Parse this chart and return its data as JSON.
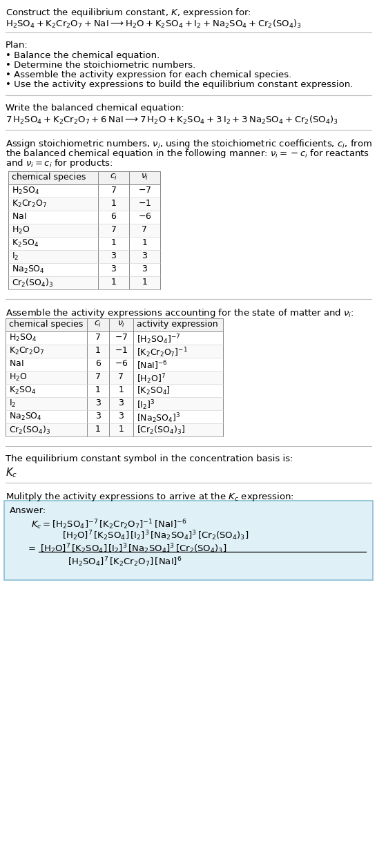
{
  "bg_color": "#ffffff",
  "answer_box_color": "#dff0f7",
  "answer_box_border": "#89bdd3",
  "text_color": "#000000",
  "title_line1": "Construct the equilibrium constant, $K$, expression for:",
  "title_line2": "$\\mathrm{H_2SO_4 + K_2Cr_2O_7 + NaI \\longrightarrow H_2O + K_2SO_4 + I_2 + Na_2SO_4 + Cr_2(SO_4)_3}$",
  "plan_header": "Plan:",
  "plan_items": [
    "• Balance the chemical equation.",
    "• Determine the stoichiometric numbers.",
    "• Assemble the activity expression for each chemical species.",
    "• Use the activity expressions to build the equilibrium constant expression."
  ],
  "balanced_header": "Write the balanced chemical equation:",
  "balanced_eq": "$\\mathrm{7\\,H_2SO_4 + K_2Cr_2O_7 + 6\\,NaI \\longrightarrow 7\\,H_2O + K_2SO_4 + 3\\,I_2 + 3\\,Na_2SO_4 + Cr_2(SO_4)_3}$",
  "stoich_lines": [
    "Assign stoichiometric numbers, $\\nu_i$, using the stoichiometric coefficients, $c_i$, from",
    "the balanced chemical equation in the following manner: $\\nu_i = -c_i$ for reactants",
    "and $\\nu_i = c_i$ for products:"
  ],
  "table1_headers": [
    "chemical species",
    "$c_i$",
    "$\\nu_i$"
  ],
  "table1_rows": [
    [
      "$\\mathrm{H_2SO_4}$",
      "7",
      "$-7$"
    ],
    [
      "$\\mathrm{K_2Cr_2O_7}$",
      "1",
      "$-1$"
    ],
    [
      "$\\mathrm{NaI}$",
      "6",
      "$-6$"
    ],
    [
      "$\\mathrm{H_2O}$",
      "7",
      "7"
    ],
    [
      "$\\mathrm{K_2SO_4}$",
      "1",
      "1"
    ],
    [
      "$\\mathrm{I_2}$",
      "3",
      "3"
    ],
    [
      "$\\mathrm{Na_2SO_4}$",
      "3",
      "3"
    ],
    [
      "$\\mathrm{Cr_2(SO_4)_3}$",
      "1",
      "1"
    ]
  ],
  "activity_header": "Assemble the activity expressions accounting for the state of matter and $\\nu_i$:",
  "table2_headers": [
    "chemical species",
    "$c_i$",
    "$\\nu_i$",
    "activity expression"
  ],
  "table2_rows": [
    [
      "$\\mathrm{H_2SO_4}$",
      "7",
      "$-7$",
      "$[\\mathrm{H_2SO_4}]^{-7}$"
    ],
    [
      "$\\mathrm{K_2Cr_2O_7}$",
      "1",
      "$-1$",
      "$[\\mathrm{K_2Cr_2O_7}]^{-1}$"
    ],
    [
      "$\\mathrm{NaI}$",
      "6",
      "$-6$",
      "$[\\mathrm{NaI}]^{-6}$"
    ],
    [
      "$\\mathrm{H_2O}$",
      "7",
      "7",
      "$[\\mathrm{H_2O}]^{7}$"
    ],
    [
      "$\\mathrm{K_2SO_4}$",
      "1",
      "1",
      "$[\\mathrm{K_2SO_4}]$"
    ],
    [
      "$\\mathrm{I_2}$",
      "3",
      "3",
      "$[\\mathrm{I_2}]^{3}$"
    ],
    [
      "$\\mathrm{Na_2SO_4}$",
      "3",
      "3",
      "$[\\mathrm{Na_2SO_4}]^{3}$"
    ],
    [
      "$\\mathrm{Cr_2(SO_4)_3}$",
      "1",
      "1",
      "$[\\mathrm{Cr_2(SO_4)_3}]$"
    ]
  ],
  "kc_header": "The equilibrium constant symbol in the concentration basis is:",
  "kc_symbol": "$K_c$",
  "multiply_header": "Mulitply the activity expressions to arrive at the $K_c$ expression:",
  "answer_label": "Answer:",
  "answer_line1": "$K_c = [\\mathrm{H_2SO_4}]^{-7}\\,[\\mathrm{K_2Cr_2O_7}]^{-1}\\,[\\mathrm{NaI}]^{-6}$",
  "answer_line2": "$[\\mathrm{H_2O}]^{7}\\,[\\mathrm{K_2SO_4}]\\,[\\mathrm{I_2}]^{3}\\,[\\mathrm{Na_2SO_4}]^{3}\\,[\\mathrm{Cr_2(SO_4)_3}]$",
  "answer_eq_sign": "$=$",
  "answer_num": "$[\\mathrm{H_2O}]^{7}\\,[\\mathrm{K_2SO_4}]\\,[\\mathrm{I_2}]^{3}\\,[\\mathrm{Na_2SO_4}]^{3}\\,[\\mathrm{Cr_2(SO_4)_3}]$",
  "answer_den": "$[\\mathrm{H_2SO_4}]^{7}\\,[\\mathrm{K_2Cr_2O_7}]\\,[\\mathrm{NaI}]^{6}$"
}
